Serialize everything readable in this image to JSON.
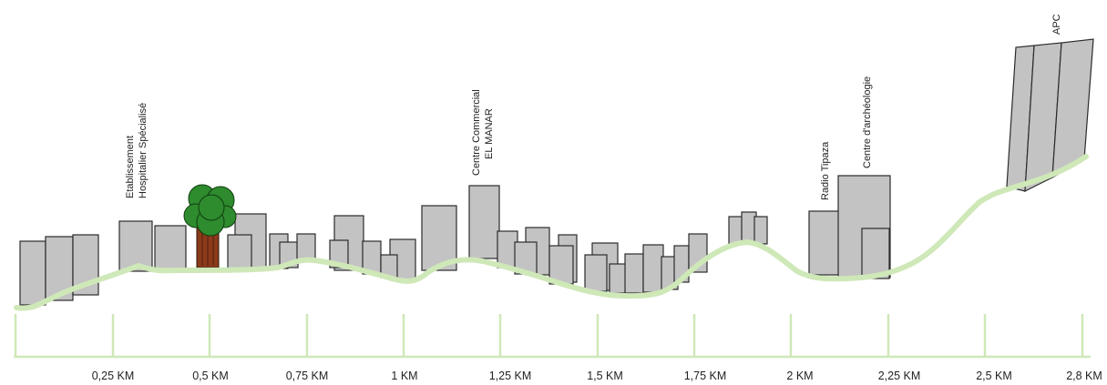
{
  "axis": {
    "ticks": [
      "0,25 KM",
      "0,5 KM",
      "0,75 KM",
      "1 KM",
      "1,25 KM",
      "1,5 KM",
      "1,75 KM",
      "2 KM",
      "2,25 KM",
      "2,5 KM",
      "2,8 KM"
    ]
  },
  "landmarks": {
    "hospital": [
      "Etablissement",
      "Hospitalier Spécialisé"
    ],
    "mall": [
      "Centre Commercial",
      "EL MANAR"
    ],
    "radio": "Radio Tipaza",
    "archaeology": "Centre d'archéologie",
    "apc": "APC"
  },
  "colors": {
    "building_fill": "#c3c3c3",
    "building_stroke": "#2b2b2b",
    "terrain": "#cfe8b8",
    "tree_foliage": "#2e8b2e",
    "tree_trunk": "#8b3a1a"
  }
}
